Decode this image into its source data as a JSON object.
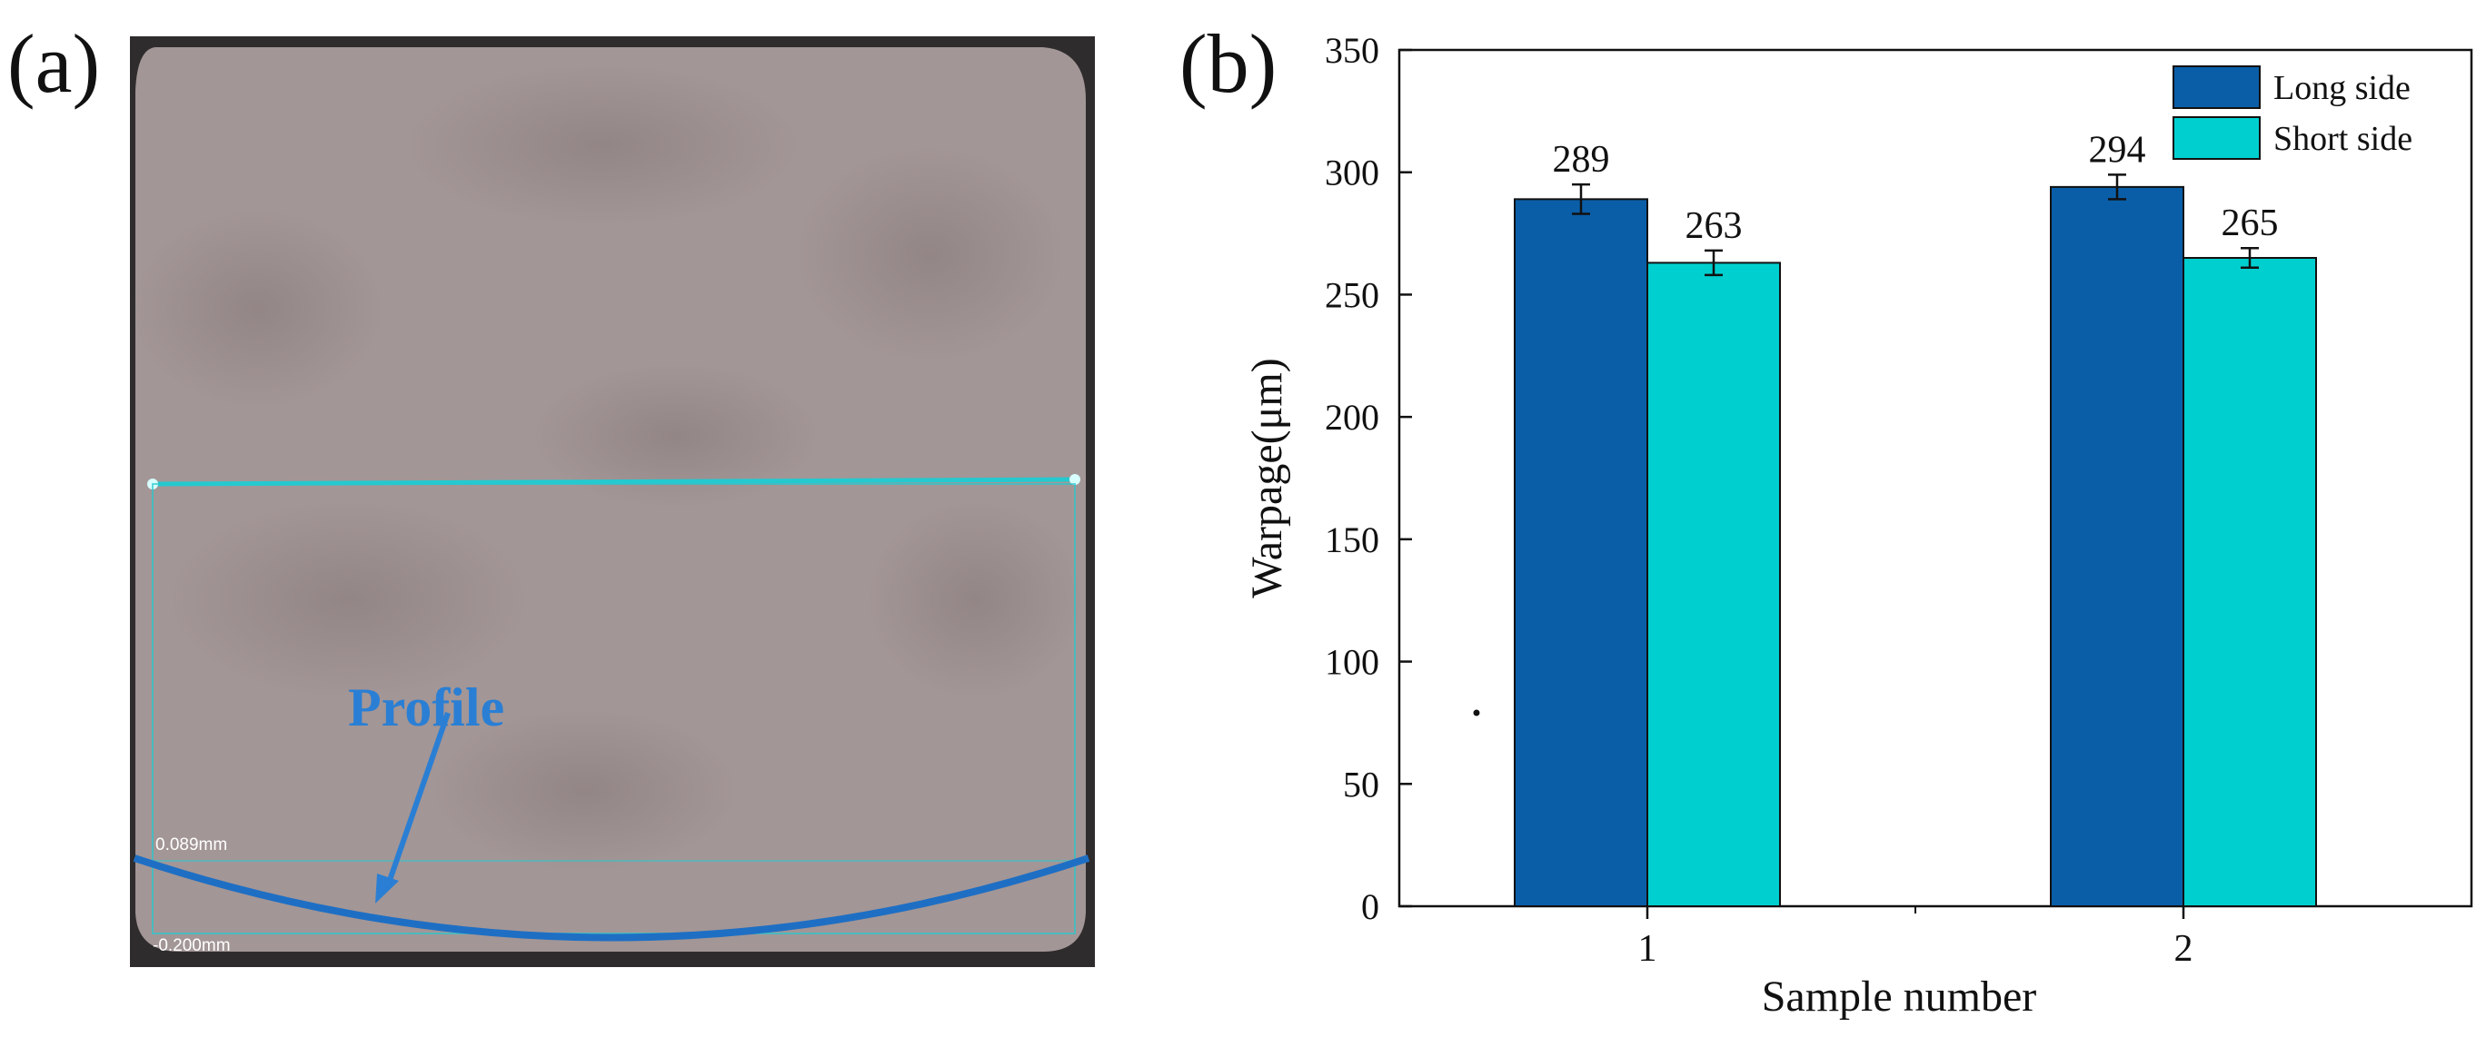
{
  "panel_labels": {
    "a": "(a)",
    "b": "(b)"
  },
  "micrograph": {
    "annotation": "Profile",
    "scale_top": "0.089mm",
    "scale_bottom": "-0.200mm",
    "colors": {
      "surface": "#a49797",
      "line": "#25c9cf",
      "profile": "#1e6fc4",
      "annotation": "#2a7fd4"
    }
  },
  "chart_data": {
    "type": "bar",
    "categories": [
      "1",
      "2"
    ],
    "series": [
      {
        "name": "Long side",
        "color": "#0a5ea8",
        "values": [
          289,
          294
        ],
        "errors": [
          6,
          5
        ]
      },
      {
        "name": "Short side",
        "color": "#00cfcf",
        "values": [
          263,
          265
        ],
        "errors": [
          5,
          4
        ]
      }
    ],
    "data_labels": [
      [
        "289",
        "294"
      ],
      [
        "263",
        "265"
      ]
    ],
    "title": "",
    "xlabel": "Sample number",
    "ylabel": "Warpage(μm)",
    "ylim": [
      0,
      350
    ],
    "yticks": [
      0,
      50,
      100,
      150,
      200,
      250,
      300,
      350
    ],
    "legend_position": "top-right",
    "grid": false
  }
}
